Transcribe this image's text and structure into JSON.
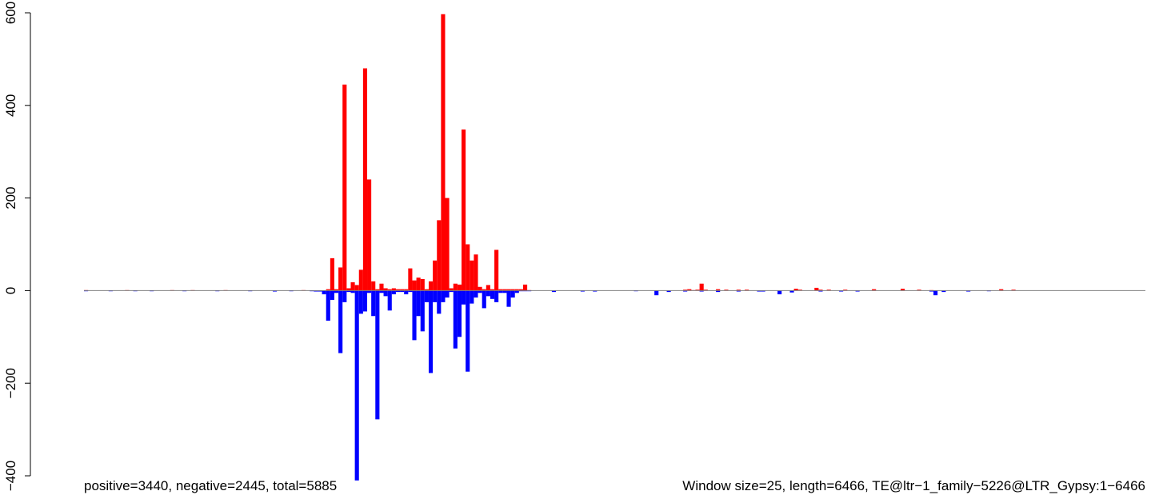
{
  "chart_data": {
    "type": "bar",
    "title": "",
    "xlabel": "",
    "ylabel": "",
    "ylim": [
      -400,
      600
    ],
    "yticks": [
      -400,
      -200,
      0,
      200,
      400,
      600
    ],
    "ytick_labels": [
      "−400",
      "−200",
      "0",
      "200",
      "400",
      "600"
    ],
    "window_size": 25,
    "length": 6466,
    "annotations": {
      "left": "positive=3440, negative=2445, total=5885",
      "right": "Window size=25, length=6466, TE@ltr−1_family−5226@LTR_Gypsy:1−6466"
    },
    "colors": {
      "positive": "#ff0000",
      "negative": "#0000ff",
      "baseline": "#808080"
    },
    "series": [
      {
        "name": "positive",
        "color": "#ff0000",
        "points": [
          [
            0,
            1
          ],
          [
            250,
            1
          ],
          [
            525,
            1
          ],
          [
            650,
            1
          ],
          [
            850,
            1
          ],
          [
            1325,
            1
          ],
          [
            1475,
            3
          ],
          [
            1500,
            70
          ],
          [
            1525,
            3
          ],
          [
            1550,
            50
          ],
          [
            1575,
            445
          ],
          [
            1600,
            5
          ],
          [
            1625,
            18
          ],
          [
            1650,
            12
          ],
          [
            1675,
            45
          ],
          [
            1700,
            480
          ],
          [
            1725,
            240
          ],
          [
            1750,
            20
          ],
          [
            1775,
            3
          ],
          [
            1800,
            15
          ],
          [
            1825,
            5
          ],
          [
            1850,
            3
          ],
          [
            1875,
            5
          ],
          [
            1900,
            3
          ],
          [
            1925,
            3
          ],
          [
            1950,
            3
          ],
          [
            1975,
            48
          ],
          [
            2000,
            22
          ],
          [
            2025,
            28
          ],
          [
            2050,
            25
          ],
          [
            2075,
            3
          ],
          [
            2100,
            20
          ],
          [
            2125,
            65
          ],
          [
            2150,
            152
          ],
          [
            2175,
            597
          ],
          [
            2200,
            200
          ],
          [
            2225,
            5
          ],
          [
            2250,
            15
          ],
          [
            2275,
            13
          ],
          [
            2300,
            348
          ],
          [
            2325,
            100
          ],
          [
            2350,
            65
          ],
          [
            2375,
            78
          ],
          [
            2400,
            8
          ],
          [
            2425,
            3
          ],
          [
            2450,
            12
          ],
          [
            2475,
            3
          ],
          [
            2500,
            88
          ],
          [
            2525,
            3
          ],
          [
            2550,
            3
          ],
          [
            2575,
            3
          ],
          [
            2600,
            3
          ],
          [
            2625,
            3
          ],
          [
            2650,
            3
          ],
          [
            2675,
            13
          ],
          [
            2700,
            1
          ],
          [
            3650,
            2
          ],
          [
            3675,
            3
          ],
          [
            3700,
            1
          ],
          [
            3725,
            2
          ],
          [
            3750,
            15
          ],
          [
            3775,
            2
          ],
          [
            3850,
            3
          ],
          [
            3900,
            2
          ],
          [
            3975,
            2
          ],
          [
            4025,
            2
          ],
          [
            4325,
            4
          ],
          [
            4350,
            2
          ],
          [
            4450,
            6
          ],
          [
            4475,
            2
          ],
          [
            4525,
            2
          ],
          [
            4625,
            2
          ],
          [
            4800,
            3
          ],
          [
            4975,
            4
          ],
          [
            5075,
            2
          ],
          [
            5150,
            1
          ],
          [
            5575,
            3
          ],
          [
            5650,
            2
          ]
        ]
      },
      {
        "name": "negative",
        "color": "#0000ff",
        "points": [
          [
            0,
            -1
          ],
          [
            150,
            -1
          ],
          [
            300,
            -1
          ],
          [
            400,
            -1
          ],
          [
            600,
            -1
          ],
          [
            800,
            -1
          ],
          [
            1000,
            -1
          ],
          [
            1150,
            -2
          ],
          [
            1250,
            -1
          ],
          [
            1375,
            -1
          ],
          [
            1400,
            -2
          ],
          [
            1425,
            -2
          ],
          [
            1450,
            -8
          ],
          [
            1475,
            -65
          ],
          [
            1500,
            -20
          ],
          [
            1525,
            -5
          ],
          [
            1550,
            -135
          ],
          [
            1575,
            -25
          ],
          [
            1600,
            -3
          ],
          [
            1625,
            -5
          ],
          [
            1650,
            -410
          ],
          [
            1675,
            -50
          ],
          [
            1700,
            -45
          ],
          [
            1725,
            -5
          ],
          [
            1750,
            -55
          ],
          [
            1775,
            -278
          ],
          [
            1800,
            -5
          ],
          [
            1825,
            -12
          ],
          [
            1850,
            -43
          ],
          [
            1875,
            -8
          ],
          [
            1900,
            -3
          ],
          [
            1925,
            -3
          ],
          [
            1950,
            -8
          ],
          [
            1975,
            -3
          ],
          [
            2000,
            -107
          ],
          [
            2025,
            -55
          ],
          [
            2050,
            -88
          ],
          [
            2075,
            -25
          ],
          [
            2100,
            -178
          ],
          [
            2125,
            -25
          ],
          [
            2150,
            -50
          ],
          [
            2175,
            -25
          ],
          [
            2200,
            -15
          ],
          [
            2225,
            -3
          ],
          [
            2250,
            -125
          ],
          [
            2275,
            -100
          ],
          [
            2300,
            -30
          ],
          [
            2325,
            -175
          ],
          [
            2350,
            -28
          ],
          [
            2375,
            -15
          ],
          [
            2400,
            -5
          ],
          [
            2425,
            -38
          ],
          [
            2450,
            -12
          ],
          [
            2475,
            -18
          ],
          [
            2500,
            -25
          ],
          [
            2525,
            -5
          ],
          [
            2550,
            -5
          ],
          [
            2575,
            -35
          ],
          [
            2600,
            -15
          ],
          [
            2625,
            -5
          ],
          [
            2650,
            -1
          ],
          [
            2675,
            -1
          ],
          [
            2700,
            -1
          ],
          [
            2850,
            -3
          ],
          [
            3025,
            -2
          ],
          [
            3100,
            -2
          ],
          [
            3350,
            -1
          ],
          [
            3475,
            -10
          ],
          [
            3550,
            -3
          ],
          [
            3650,
            -2
          ],
          [
            3750,
            -2
          ],
          [
            3850,
            -3
          ],
          [
            3975,
            -2
          ],
          [
            4100,
            -2
          ],
          [
            4125,
            -2
          ],
          [
            4225,
            -8
          ],
          [
            4300,
            -4
          ],
          [
            4475,
            -2
          ],
          [
            4600,
            -2
          ],
          [
            4700,
            -2
          ],
          [
            5150,
            -2
          ],
          [
            5175,
            -10
          ],
          [
            5225,
            -3
          ],
          [
            5375,
            -2
          ],
          [
            5500,
            -1
          ]
        ]
      }
    ]
  }
}
